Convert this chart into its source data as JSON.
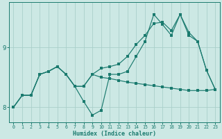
{
  "bg_color": "#cce8e4",
  "line_color": "#1a7a6e",
  "grid_color": "#aacfca",
  "xlabel": "Humidex (Indice chaleur)",
  "xlim": [
    -0.5,
    23.5
  ],
  "ylim": [
    7.75,
    9.75
  ],
  "yticks": [
    8,
    9
  ],
  "xticks": [
    0,
    1,
    2,
    3,
    4,
    5,
    6,
    7,
    8,
    9,
    10,
    11,
    12,
    13,
    14,
    15,
    16,
    17,
    18,
    19,
    20,
    21,
    22,
    23
  ],
  "line_jagged_y": [
    8.0,
    8.2,
    8.2,
    8.55,
    8.6,
    8.68,
    8.55,
    8.35,
    8.1,
    7.87,
    7.95,
    8.55,
    8.55,
    8.6,
    8.85,
    9.1,
    9.55,
    9.38,
    9.2,
    9.55,
    9.2,
    9.1,
    8.62,
    8.3
  ],
  "line_rising_y": [
    8.0,
    8.2,
    8.2,
    8.55,
    8.6,
    8.68,
    8.55,
    8.35,
    8.35,
    8.55,
    8.65,
    8.68,
    8.72,
    8.85,
    9.05,
    9.2,
    9.4,
    9.42,
    9.28,
    9.55,
    9.25,
    9.1,
    8.62,
    8.3
  ],
  "line_flat_y": [
    8.0,
    8.2,
    8.2,
    8.55,
    8.6,
    8.68,
    8.55,
    8.35,
    8.35,
    8.55,
    8.5,
    8.48,
    8.45,
    8.42,
    8.4,
    8.38,
    8.36,
    8.34,
    8.32,
    8.3,
    8.28,
    8.28,
    8.28,
    8.3
  ],
  "marker_size": 2.5,
  "linewidth": 0.85
}
